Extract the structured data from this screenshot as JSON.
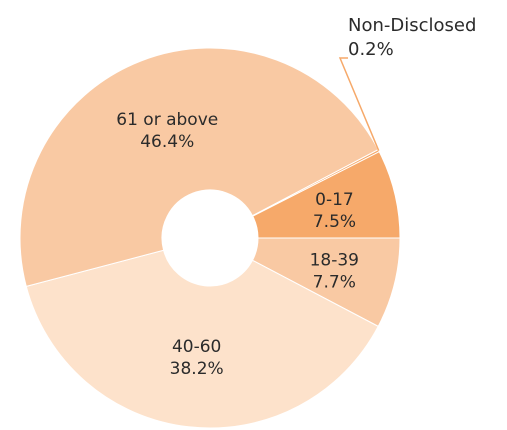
{
  "chart_data": {
    "type": "pie",
    "donut": true,
    "slices": [
      {
        "label": "18-39",
        "percent_label": "7.7%",
        "value": 7.7,
        "color": "#f9c9a3"
      },
      {
        "label": "40-60",
        "percent_label": "38.2%",
        "value": 38.2,
        "color": "#fde2cb"
      },
      {
        "label": "61 or above",
        "percent_label": "46.4%",
        "value": 46.4,
        "color": "#f9c9a3"
      },
      {
        "label": "Non-Disclosed",
        "percent_label": "0.2%",
        "value": 0.2,
        "color": "#f6a96a"
      },
      {
        "label": "0-17",
        "percent_label": "7.5%",
        "value": 7.5,
        "color": "#f6a96a"
      }
    ],
    "label_color": "#2b2b2b",
    "leader_line_color": "#f6a96a"
  }
}
